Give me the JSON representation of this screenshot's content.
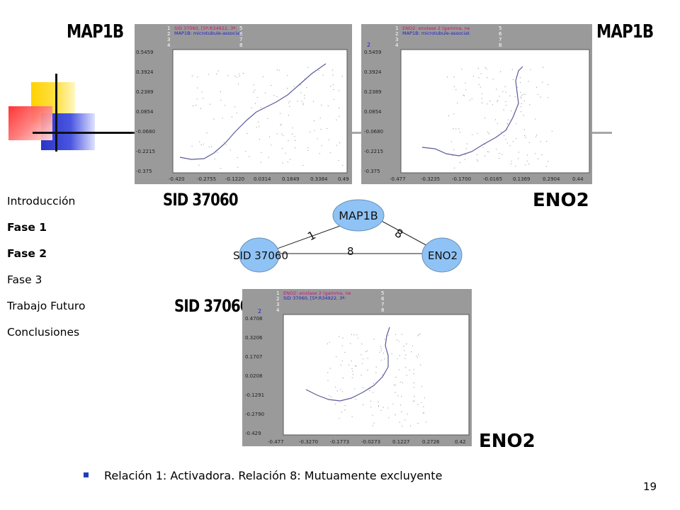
{
  "slide": {
    "page_number": "19",
    "labels": {
      "top_left": "MAP1B",
      "top_right": "MAP1B",
      "mid_left": "SID 37060",
      "mid_right": "ENO2",
      "bottom_left": "SID 37060",
      "bottom_right": "ENO2"
    },
    "bullet": "Relación 1: Activadora. Relación 8: Mutuamente excluyente"
  },
  "nav": {
    "items": [
      {
        "label": "Introducción",
        "bold": false
      },
      {
        "label": "Fase 1",
        "bold": true
      },
      {
        "label": "Fase 2",
        "bold": true
      },
      {
        "label": "Fase 3",
        "bold": false
      },
      {
        "label": "Trabajo Futuro",
        "bold": false
      },
      {
        "label": "Conclusiones",
        "bold": false
      }
    ]
  },
  "network": {
    "nodes": [
      "MAP1B",
      "SID 37060",
      "ENO2"
    ],
    "edges": [
      {
        "from": "SID 37060",
        "to": "MAP1B",
        "label": "1"
      },
      {
        "from": "MAP1B",
        "to": "ENO2",
        "label": "8"
      },
      {
        "from": "SID 37060",
        "to": "ENO2",
        "label": "8"
      }
    ],
    "node_fill": "#8fc3f5"
  },
  "plots": {
    "plot1": {
      "legend_numbers_left": [
        "1",
        "2",
        "3",
        "4"
      ],
      "legend_numbers_right": [
        "5",
        "6",
        "7",
        "8"
      ],
      "legend_line1": "SID 37060, [5ª:R34922, 3ª:",
      "legend_line2": "MAP1B: microtubule-associat",
      "y_ticks": [
        "0.5459",
        "0.3924",
        "0.2389",
        "0.0854",
        "-0.0680",
        "-0.2215",
        "-0.375"
      ],
      "x_ticks": [
        "-0.420",
        "-0.2755",
        "-0.1220",
        "0.0314",
        "0.1849",
        "0.3384",
        "0.49"
      ]
    },
    "plot2": {
      "y_marker": "2",
      "legend_numbers_left": [
        "1",
        "2",
        "3",
        "4"
      ],
      "legend_numbers_right": [
        "5",
        "6",
        "7",
        "8"
      ],
      "legend_line1": "ENO2: enolase 2 (gamma, ne",
      "legend_line2": "MAP1B: microtubule-associat",
      "y_ticks": [
        "0.5459",
        "0.3924",
        "0.2389",
        "0.0854",
        "-0.0680",
        "-0.2215",
        "-0.375"
      ],
      "x_ticks": [
        "-0.477",
        "-0.3235",
        "-0.1700",
        "-0.0165",
        "0.1369",
        "0.2904",
        "0.44"
      ]
    },
    "plot3": {
      "y_marker": "2",
      "legend_numbers_left": [
        "1",
        "2",
        "3",
        "4"
      ],
      "legend_numbers_right": [
        "5",
        "6",
        "7",
        "8"
      ],
      "legend_line1": "ENO2: enolase 2 (gamma, ne",
      "legend_line2": "SID 37060, [5ª:R34922, 3ª:",
      "y_ticks": [
        "0.4708",
        "0.3206",
        "0.1707",
        "0.0208",
        "-0.1291",
        "-0.2790",
        "-0.429"
      ],
      "x_ticks": [
        "-0.477",
        "-0.3270",
        "-0.1773",
        "-0.0273",
        "0.1227",
        "0.2726",
        "0.42"
      ]
    }
  },
  "colors": {
    "bullet": "#1f3fb5",
    "panel_bg": "#9a9a9a",
    "legend_red": "#d0107a",
    "legend_blue": "#2020c8",
    "curve": "#5a5a9a"
  }
}
